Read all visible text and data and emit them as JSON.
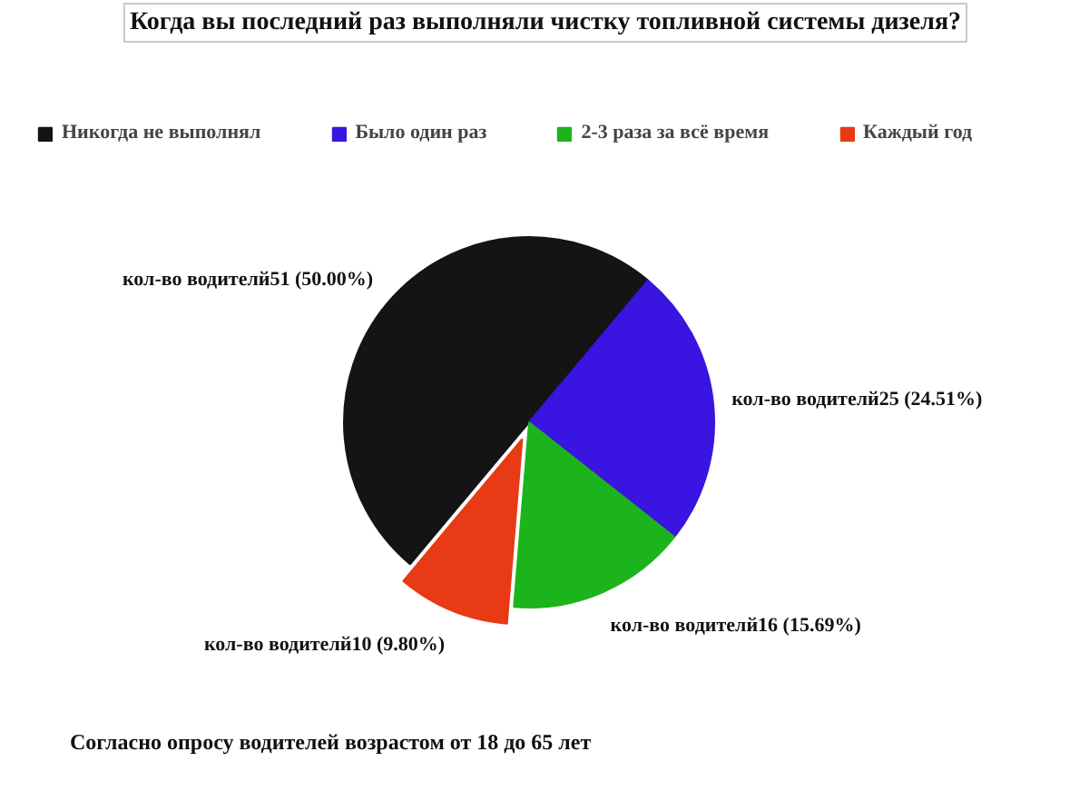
{
  "chart_data": {
    "type": "pie",
    "title": "Когда вы последний раз выполняли чистку топливной системы дизеля?",
    "categories": [
      "Никогда не выполнял",
      "Было один раз",
      "2-3 раза за всё время",
      "Каждый год"
    ],
    "values": [
      51,
      25,
      16,
      10
    ],
    "colors": [
      "#141414",
      "#3a14e0",
      "#1cb41c",
      "#e83a14"
    ],
    "value_labels": [
      "кол-во водителй51 (50.00%)",
      "кол-во водителй25 (24.51%)",
      "кол-во водителй16 (15.69%)",
      "кол-во водителй10 (9.80%)"
    ],
    "legend": "top",
    "annotations": [
      "Согласно опросу водителей возрастом от 18 до 65 лет"
    ]
  }
}
